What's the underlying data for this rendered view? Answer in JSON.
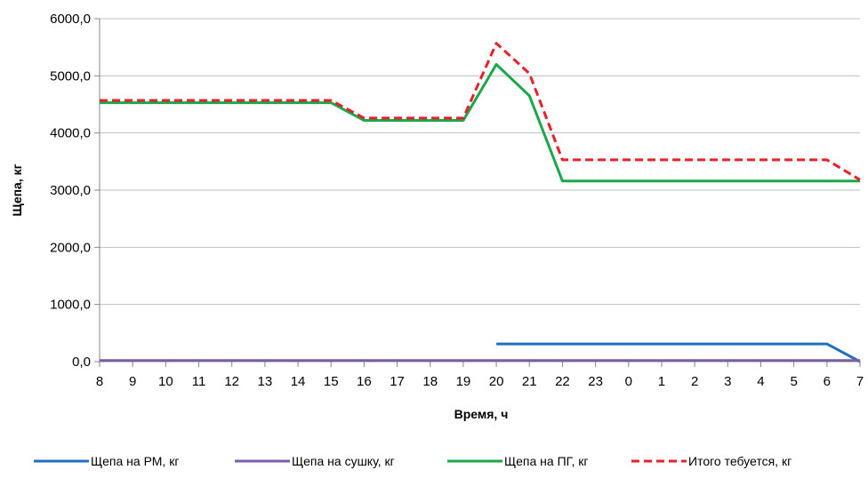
{
  "chart_data": {
    "type": "line",
    "title": "",
    "xlabel": "Время, ч",
    "ylabel": "Щепа, кг",
    "categories": [
      "8",
      "9",
      "10",
      "11",
      "12",
      "13",
      "14",
      "15",
      "16",
      "17",
      "18",
      "19",
      "20",
      "21",
      "22",
      "23",
      "0",
      "1",
      "2",
      "3",
      "4",
      "5",
      "6",
      "7"
    ],
    "ylim": [
      0,
      6000
    ],
    "yticks": [
      0,
      1000,
      2000,
      3000,
      4000,
      5000,
      6000
    ],
    "ytick_labels": [
      "0,0",
      "1000,0",
      "2000,0",
      "3000,0",
      "4000,0",
      "5000,0",
      "6000,0"
    ],
    "grid": true,
    "legend_position": "bottom",
    "series": [
      {
        "name": "Щепа на РМ, кг",
        "color": "#1f6fc5",
        "style": "solid",
        "values": [
          null,
          null,
          null,
          null,
          null,
          null,
          null,
          null,
          null,
          null,
          null,
          null,
          310,
          310,
          310,
          310,
          310,
          310,
          310,
          310,
          310,
          310,
          310,
          0
        ]
      },
      {
        "name": "Щепа на сушку, кг",
        "color": "#7b5ea7",
        "style": "solid",
        "values": [
          20,
          20,
          20,
          20,
          20,
          20,
          20,
          20,
          20,
          20,
          20,
          20,
          20,
          20,
          20,
          20,
          20,
          20,
          20,
          20,
          20,
          20,
          20,
          20
        ]
      },
      {
        "name": "Щепа на ПГ, кг",
        "color": "#19a84a",
        "style": "solid",
        "values": [
          4530,
          4530,
          4530,
          4530,
          4530,
          4530,
          4530,
          4530,
          4220,
          4220,
          4220,
          4220,
          5200,
          4650,
          3160,
          3160,
          3160,
          3160,
          3160,
          3160,
          3160,
          3160,
          3160,
          3160
        ]
      },
      {
        "name": "Итого тебуется, кг",
        "color": "#e8202a",
        "style": "dashed",
        "values": [
          4570,
          4570,
          4570,
          4570,
          4570,
          4570,
          4570,
          4570,
          4260,
          4260,
          4260,
          4260,
          5570,
          5040,
          3530,
          3530,
          3530,
          3530,
          3530,
          3530,
          3530,
          3530,
          3530,
          3180
        ]
      }
    ]
  }
}
